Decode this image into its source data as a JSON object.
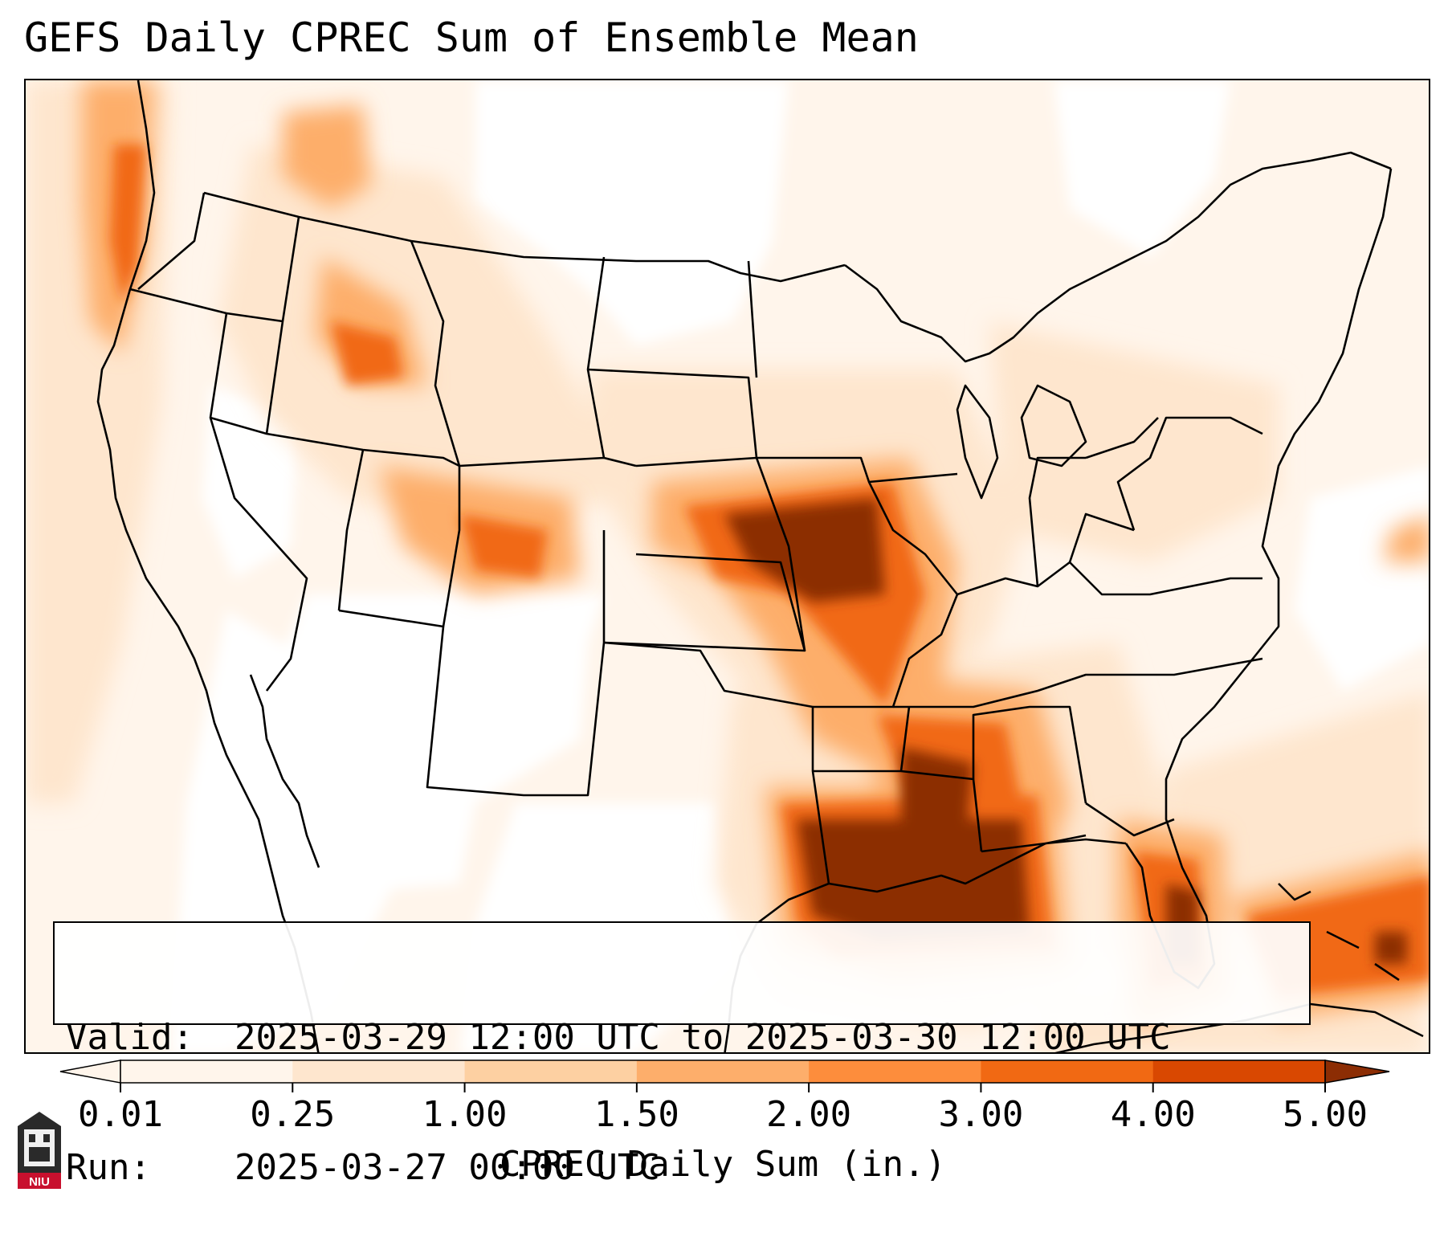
{
  "title": "GEFS Daily CPREC Sum of Ensemble Mean",
  "info": {
    "valid_label": "Valid:",
    "valid_value": "2025-03-29 12:00 UTC to 2025-03-30 12:00 UTC",
    "run_label": "Run:",
    "run_value": "2025-03-27 00:00 UTC"
  },
  "colorbar": {
    "label": "CPREC Daily Sum (in.)",
    "ticks": [
      "0.01",
      "0.25",
      "1.00",
      "1.50",
      "2.00",
      "3.00",
      "4.00",
      "5.00"
    ],
    "colors": [
      "#fff5eb",
      "#fee6ce",
      "#fdd0a2",
      "#fdae6b",
      "#fd8d3c",
      "#f16913",
      "#d94801",
      "#8c2d04"
    ]
  },
  "logo": {
    "text": "NIU",
    "icon": "university-tower-icon"
  },
  "map": {
    "region": "Contiguous United States",
    "heavy_areas": [
      "Louisiana",
      "Gulf of Mexico",
      "Missouri",
      "Iowa",
      "Florida",
      "Bahamas"
    ]
  }
}
